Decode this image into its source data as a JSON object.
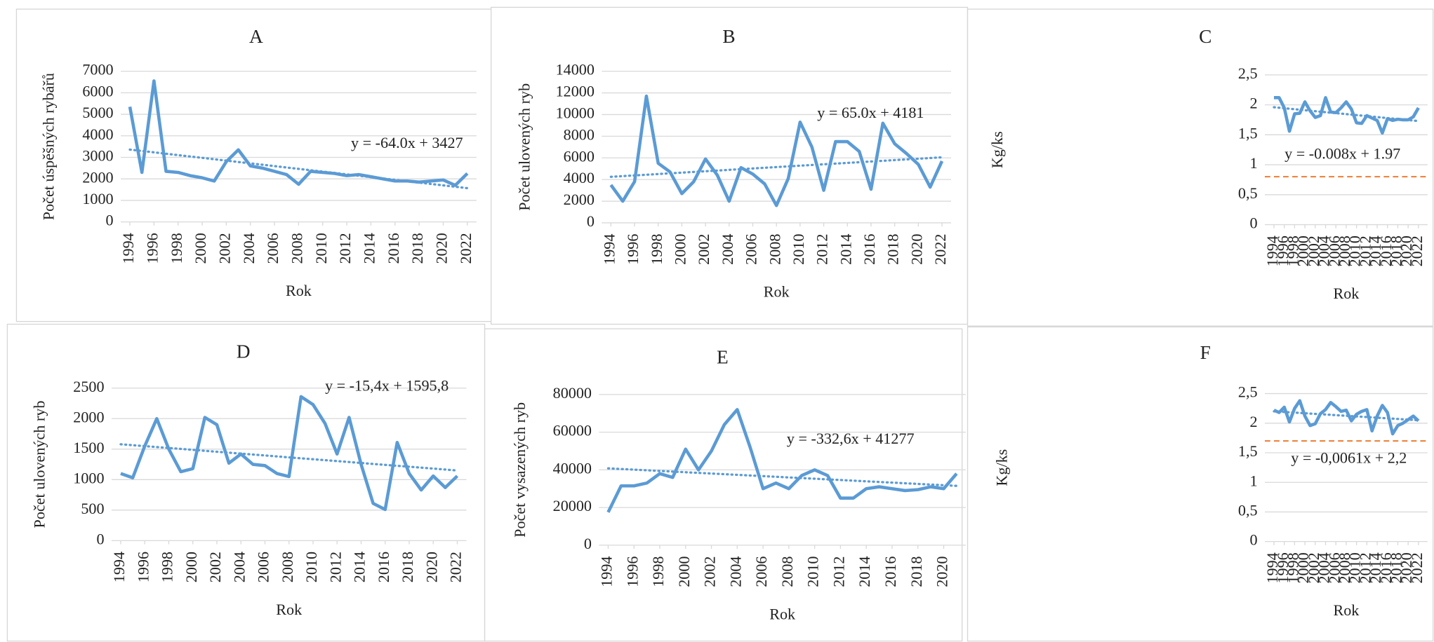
{
  "chart_data": [
    {
      "type": "line",
      "title": "A",
      "x_label": "Rok",
      "y_label": "Počet úspěšných rybářů",
      "x": [
        1994,
        1995,
        1996,
        1997,
        1998,
        1999,
        2000,
        2001,
        2002,
        2003,
        2004,
        2005,
        2006,
        2007,
        2008,
        2009,
        2010,
        2011,
        2012,
        2013,
        2014,
        2015,
        2016,
        2017,
        2018,
        2019,
        2020,
        2021,
        2022
      ],
      "values": [
        5350,
        2300,
        6550,
        2350,
        2300,
        2150,
        2050,
        1900,
        2800,
        3350,
        2600,
        2500,
        2350,
        2200,
        1750,
        2350,
        2300,
        2250,
        2150,
        2200,
        2100,
        2000,
        1900,
        1900,
        1850,
        1900,
        1950,
        1700,
        2250
      ],
      "color": "#5b9bd5",
      "xlim": [
        1994,
        2022
      ],
      "xticks": [
        1994,
        1996,
        1998,
        2000,
        2002,
        2004,
        2006,
        2008,
        2010,
        2012,
        2014,
        2016,
        2018,
        2020,
        2022
      ],
      "ylim": [
        0,
        7000
      ],
      "yticks": [
        0,
        1000,
        2000,
        3000,
        4000,
        5000,
        6000,
        7000
      ],
      "grid": true,
      "trend": {
        "label": "y = -64.0x + 3427",
        "values": [
          3360,
          1570
        ]
      }
    },
    {
      "type": "line",
      "title": "B",
      "x_label": "Rok",
      "y_label": "Počet ulovených ryb",
      "x": [
        1994,
        1995,
        1996,
        1997,
        1998,
        1999,
        2000,
        2001,
        2002,
        2003,
        2004,
        2005,
        2006,
        2007,
        2008,
        2009,
        2010,
        2011,
        2012,
        2013,
        2014,
        2015,
        2016,
        2017,
        2018,
        2019,
        2020,
        2021,
        2022
      ],
      "values": [
        3500,
        2000,
        3800,
        11700,
        5500,
        4700,
        2700,
        3800,
        5900,
        4400,
        2000,
        5100,
        4500,
        3600,
        1600,
        4100,
        9300,
        7000,
        3000,
        7500,
        7500,
        6600,
        3100,
        9200,
        7300,
        6400,
        5400,
        3300,
        5700
      ],
      "color": "#5b9bd5",
      "xlim": [
        1994,
        2022
      ],
      "xticks": [
        1994,
        1996,
        1998,
        2000,
        2002,
        2004,
        2006,
        2008,
        2010,
        2012,
        2014,
        2016,
        2018,
        2020,
        2022
      ],
      "ylim": [
        0,
        14000
      ],
      "yticks": [
        0,
        2000,
        4000,
        6000,
        8000,
        10000,
        12000,
        14000
      ],
      "grid": true,
      "trend": {
        "label": "y = 65.0x + 4181",
        "values": [
          4250,
          6050
        ]
      }
    },
    {
      "type": "line",
      "title": "C",
      "x_label": "Rok",
      "y_label": "Kg/ks",
      "x": [
        1994,
        1995,
        1996,
        1997,
        1998,
        1999,
        2000,
        2001,
        2002,
        2003,
        2004,
        2005,
        2006,
        2007,
        2008,
        2009,
        2010,
        2011,
        2012,
        2013,
        2014,
        2015,
        2016,
        2017,
        2018,
        2019,
        2020,
        2021,
        2022
      ],
      "values": [
        2.12,
        2.12,
        1.95,
        1.56,
        1.85,
        1.86,
        2.05,
        1.9,
        1.79,
        1.82,
        2.12,
        1.88,
        1.87,
        1.95,
        2.05,
        1.93,
        1.7,
        1.69,
        1.82,
        1.78,
        1.74,
        1.53,
        1.77,
        1.74,
        1.76,
        1.75,
        1.75,
        1.8,
        1.95
      ],
      "color": "#5b9bd5",
      "xlim": [
        1994,
        2022
      ],
      "xticks": [
        1994,
        1996,
        1998,
        2000,
        2002,
        2004,
        2006,
        2008,
        2010,
        2012,
        2014,
        2016,
        2018,
        2020,
        2022
      ],
      "ylim": [
        0,
        2.5
      ],
      "yticks": [
        0,
        {
          "value": 0.5,
          "label": "0,5"
        },
        1,
        {
          "value": 1.5,
          "label": "1,5"
        },
        2,
        {
          "value": 2.5,
          "label": "2,5"
        }
      ],
      "grid": true,
      "trend": {
        "label": "y = -0.008x + 1.97",
        "values": [
          1.96,
          1.73
        ]
      },
      "reference_line": {
        "value": 0.8,
        "color": "#ed7d31"
      }
    },
    {
      "type": "line",
      "title": "D",
      "x_label": "Rok",
      "y_label": "Počet ulovených ryb",
      "x": [
        1994,
        1995,
        1996,
        1997,
        1998,
        1999,
        2000,
        2001,
        2002,
        2003,
        2004,
        2005,
        2006,
        2007,
        2008,
        2009,
        2010,
        2011,
        2012,
        2013,
        2014,
        2015,
        2016,
        2017,
        2018,
        2019,
        2020,
        2021,
        2022
      ],
      "values": [
        1100,
        1030,
        1550,
        2000,
        1500,
        1130,
        1180,
        2020,
        1900,
        1270,
        1420,
        1250,
        1230,
        1100,
        1050,
        2360,
        2230,
        1920,
        1420,
        2020,
        1250,
        610,
        510,
        1610,
        1100,
        830,
        1060,
        870,
        1060
      ],
      "color": "#5b9bd5",
      "xlim": [
        1994,
        2022
      ],
      "xticks": [
        1994,
        1996,
        1998,
        2000,
        2002,
        2004,
        2006,
        2008,
        2010,
        2012,
        2014,
        2016,
        2018,
        2020,
        2022
      ],
      "ylim": [
        0,
        2500
      ],
      "yticks": [
        0,
        500,
        1000,
        1500,
        2000,
        2500
      ],
      "grid": true,
      "trend": {
        "label": "y = -15,4x + 1595,8",
        "values": [
          1580,
          1150
        ]
      }
    },
    {
      "type": "line",
      "title": "E",
      "x_label": "Rok",
      "y_label": "Počet vysazených ryb",
      "x": [
        1994,
        1995,
        1996,
        1997,
        1998,
        1999,
        2000,
        2001,
        2002,
        2003,
        2004,
        2005,
        2006,
        2007,
        2008,
        2009,
        2010,
        2011,
        2012,
        2013,
        2014,
        2015,
        2016,
        2017,
        2018,
        2019,
        2020,
        2021
      ],
      "values": [
        17500,
        31500,
        31500,
        33000,
        38000,
        36000,
        51000,
        40000,
        50000,
        64000,
        72000,
        52000,
        30000,
        33000,
        30000,
        37000,
        40000,
        37000,
        25000,
        25000,
        30000,
        31000,
        30000,
        29000,
        29500,
        31000,
        30000,
        38000
      ],
      "color": "#5b9bd5",
      "xlim": [
        1994,
        2021
      ],
      "xticks": [
        1994,
        1996,
        1998,
        2000,
        2002,
        2004,
        2006,
        2008,
        2010,
        2012,
        2014,
        2016,
        2018,
        2020
      ],
      "ylim": [
        0,
        80000
      ],
      "yticks": [
        0,
        20000,
        40000,
        60000,
        80000
      ],
      "grid": true,
      "trend": {
        "label": "y = -332,6x + 41277",
        "values": [
          40800,
          31500
        ]
      }
    },
    {
      "type": "line",
      "title": "F",
      "x_label": "Rok",
      "y_label": "Kg/ks",
      "x": [
        1994,
        1995,
        1996,
        1997,
        1998,
        1999,
        2000,
        2001,
        2002,
        2003,
        2004,
        2005,
        2006,
        2007,
        2008,
        2009,
        2010,
        2011,
        2012,
        2013,
        2014,
        2015,
        2016,
        2017,
        2018,
        2019,
        2020,
        2021,
        2022
      ],
      "values": [
        2.22,
        2.18,
        2.27,
        2.02,
        2.25,
        2.38,
        2.12,
        1.96,
        1.99,
        2.16,
        2.23,
        2.35,
        2.28,
        2.2,
        2.22,
        2.04,
        2.15,
        2.2,
        2.23,
        1.87,
        2.12,
        2.3,
        2.18,
        1.82,
        1.96,
        2,
        2.06,
        2.12,
        2.04
      ],
      "color": "#5b9bd5",
      "xlim": [
        1994,
        2022
      ],
      "xticks": [
        1994,
        1996,
        1998,
        2000,
        2002,
        2004,
        2006,
        2008,
        2010,
        2012,
        2014,
        2016,
        2018,
        2020,
        2022
      ],
      "ylim": [
        0,
        2.5
      ],
      "yticks": [
        0,
        {
          "value": 0.5,
          "label": "0,5"
        },
        1,
        {
          "value": 1.5,
          "label": "1,5"
        },
        2,
        {
          "value": 2.5,
          "label": "2,5"
        }
      ],
      "grid": true,
      "trend": {
        "label": "y = -0,0061x + 2,2",
        "values": [
          2.2,
          2.05
        ]
      },
      "reference_line": {
        "value": 1.7,
        "color": "#ed7d31"
      }
    }
  ]
}
